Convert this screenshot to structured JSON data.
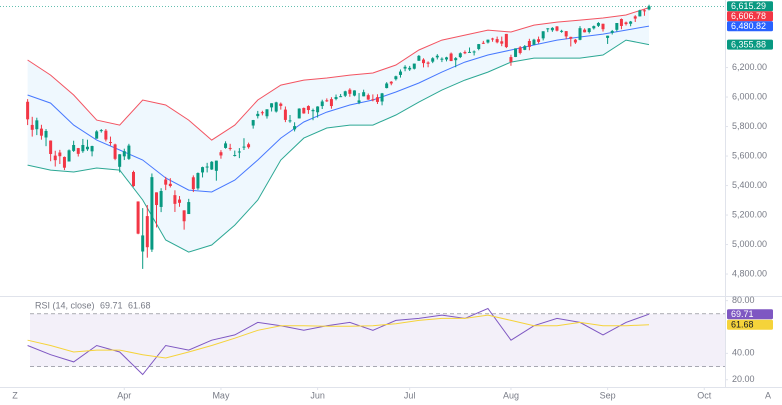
{
  "chart_data": [
    {
      "type": "candlestick",
      "xlim": [
        -6,
        151.5
      ],
      "xticks": [
        {
          "value": 21,
          "label": "Apr"
        },
        {
          "value": 42,
          "label": "May"
        },
        {
          "value": 63,
          "label": "Jun"
        },
        {
          "value": 83,
          "label": "Jul"
        },
        {
          "value": 105,
          "label": "Aug"
        },
        {
          "value": 126,
          "label": "Sep"
        },
        {
          "value": 147,
          "label": "Oct"
        }
      ],
      "ylim": [
        4658,
        6658
      ],
      "yticks": [
        {
          "value": 4800,
          "label": "4,800.00"
        },
        {
          "value": 5000,
          "label": "5,000.00"
        },
        {
          "value": 5200,
          "label": "5,200.00"
        },
        {
          "value": 5400,
          "label": "5,400.00"
        },
        {
          "value": 5600,
          "label": "5,600.00"
        },
        {
          "value": 5800,
          "label": "5,800.00"
        },
        {
          "value": 6000,
          "label": "6,000.00"
        },
        {
          "value": 6200,
          "label": "6,200.00"
        }
      ],
      "up_color": "#089981",
      "down_color": "#f23645",
      "last_label": "6,615.29",
      "open": [
        5968,
        5811,
        5782,
        5786,
        5726,
        5705,
        5603,
        5624,
        5594,
        5563,
        5635,
        5654,
        5633,
        5646,
        5632,
        5718,
        5772,
        5772,
        5695,
        5679,
        5527,
        5598,
        5581,
        5492,
        5292,
        4953,
        5193,
        4966,
        5354,
        5255,
        5441,
        5412,
        5335,
        5305,
        5232,
        5207,
        5456,
        5381,
        5489,
        5529,
        5509,
        5500,
        5626,
        5655,
        5655,
        5605,
        5626,
        5663,
        5680,
        5807,
        5871,
        5897,
        5870,
        5930,
        5902,
        5955,
        5915,
        5841,
        5781,
        5855,
        5926,
        5939,
        5904,
        5897,
        5939,
        5978,
        5986,
        5987,
        6005,
        6009,
        6050,
        6010,
        5963,
        6005,
        6013,
        5985,
        5999,
        5970,
        6061,
        6104,
        6121,
        6150,
        6193,
        6187,
        6192,
        6246,
        6254,
        6234,
        6240,
        6269,
        6255,
        6255,
        6295,
        6250,
        6271,
        6305,
        6304,
        6306,
        6326,
        6368,
        6370,
        6397,
        6393,
        6378,
        6428,
        6271,
        6272,
        6337,
        6320,
        6380,
        6354,
        6392,
        6398,
        6460,
        6453,
        6479,
        6446,
        6447,
        6408,
        6389,
        6388,
        6457,
        6441,
        6466,
        6483,
        6497,
        6401,
        6436,
        6456,
        6529,
        6506,
        6497,
        6547,
        6547,
        6588,
        6594
      ],
      "high": [
        5986,
        5866,
        5860,
        5812,
        5783,
        5706,
        5636,
        5642,
        5597,
        5645,
        5704,
        5655,
        5716,
        5711,
        5670,
        5775,
        5783,
        5783,
        5732,
        5684,
        5613,
        5650,
        5683,
        5501,
        5293,
        5247,
        5268,
        5482,
        5354,
        5382,
        5459,
        5450,
        5368,
        5329,
        5232,
        5310,
        5469,
        5489,
        5528,
        5554,
        5566,
        5569,
        5640,
        5700,
        5683,
        5637,
        5654,
        5721,
        5691,
        5845,
        5906,
        5907,
        5917,
        5958,
        5968,
        5963,
        5936,
        5878,
        5829,
        5924,
        5929,
        5944,
        5922,
        5938,
        5982,
        5991,
        5999,
        6017,
        6021,
        6043,
        6060,
        6046,
        6027,
        6050,
        6024,
        6018,
        6019,
        6028,
        6101,
        6108,
        6145,
        6187,
        6216,
        6211,
        6227,
        6285,
        6263,
        6242,
        6270,
        6291,
        6269,
        6273,
        6302,
        6271,
        6303,
        6316,
        6336,
        6316,
        6360,
        6381,
        6390,
        6402,
        6410,
        6410,
        6428,
        6287,
        6330,
        6346,
        6353,
        6395,
        6395,
        6410,
        6446,
        6467,
        6474,
        6481,
        6456,
        6447,
        6409,
        6394,
        6481,
        6466,
        6468,
        6485,
        6508,
        6497,
        6416,
        6455,
        6502,
        6533,
        6512,
        6516,
        6555,
        6592,
        6594,
        6626
      ],
      "low": [
        5810,
        5732,
        5742,
        5711,
        5667,
        5565,
        5529,
        5546,
        5505,
        5563,
        5628,
        5597,
        5622,
        5635,
        5598,
        5718,
        5759,
        5699,
        5671,
        5572,
        5489,
        5573,
        5574,
        5391,
        5070,
        4835,
        4911,
        4950,
        5116,
        5220,
        5369,
        5387,
        5221,
        5256,
        5101,
        5207,
        5356,
        5371,
        5455,
        5489,
        5506,
        5433,
        5582,
        5650,
        5637,
        5597,
        5586,
        5641,
        5650,
        5786,
        5855,
        5876,
        5854,
        5902,
        5895,
        5915,
        5830,
        5826,
        5767,
        5855,
        5887,
        5886,
        5843,
        5861,
        5919,
        5967,
        5921,
        5978,
        6000,
        6000,
        6002,
        6005,
        5952,
        6005,
        5981,
        5971,
        5953,
        5944,
        6059,
        6080,
        6112,
        6132,
        6175,
        6177,
        6187,
        6246,
        6201,
        6202,
        6230,
        6255,
        6237,
        6242,
        6244,
        6202,
        6264,
        6291,
        6303,
        6282,
        6317,
        6360,
        6363,
        6375,
        6364,
        6345,
        6332,
        6212,
        6271,
        6289,
        6318,
        6317,
        6354,
        6363,
        6384,
        6440,
        6442,
        6445,
        6436,
        6393,
        6343,
        6360,
        6385,
        6438,
        6431,
        6458,
        6475,
        6444,
        6360,
        6424,
        6445,
        6460,
        6485,
        6480,
        6509,
        6546,
        6551,
        6588
      ],
      "close": [
        5849,
        5778,
        5842,
        5738,
        5770,
        5614,
        5572,
        5599,
        5521,
        5639,
        5675,
        5615,
        5675,
        5663,
        5668,
        5767,
        5776,
        5712,
        5693,
        5581,
        5612,
        5633,
        5671,
        5397,
        5074,
        5062,
        4982,
        5457,
        5268,
        5363,
        5406,
        5397,
        5276,
        5283,
        5158,
        5288,
        5376,
        5485,
        5525,
        5529,
        5561,
        5569,
        5604,
        5686,
        5650,
        5607,
        5631,
        5664,
        5660,
        5844,
        5886,
        5892,
        5917,
        5958,
        5964,
        5940,
        5845,
        5842,
        5803,
        5922,
        5889,
        5912,
        5912,
        5936,
        5970,
        5971,
        5939,
        6000,
        6006,
        6039,
        6022,
        6045,
        5977,
        6033,
        5983,
        5981,
        5967,
        6025,
        6092,
        6092,
        6141,
        6173,
        6205,
        6198,
        6227,
        6279,
        6230,
        6226,
        6263,
        6280,
        6260,
        6269,
        6244,
        6264,
        6297,
        6297,
        6306,
        6309,
        6359,
        6363,
        6389,
        6390,
        6371,
        6362,
        6339,
        6238,
        6330,
        6299,
        6345,
        6340,
        6389,
        6374,
        6446,
        6466,
        6469,
        6450,
        6449,
        6411,
        6396,
        6370,
        6467,
        6439,
        6466,
        6481,
        6502,
        6460,
        6416,
        6448,
        6502,
        6482,
        6495,
        6512,
        6532,
        6588,
        6584,
        6615.29
      ],
      "overlay_x": [
        0,
        5,
        10,
        15,
        20,
        25,
        30,
        35,
        40,
        45,
        50,
        55,
        60,
        65,
        70,
        75,
        80,
        85,
        90,
        95,
        100,
        105,
        110,
        115,
        120,
        125,
        130,
        135
      ],
      "overlays": [
        {
          "color": "#f23645",
          "last_label": "6,606.78",
          "values": [
            6251,
            6149,
            6014,
            5844,
            5810,
            5980,
            5946,
            5844,
            5708,
            5810,
            5980,
            6081,
            6115,
            6129,
            6149,
            6163,
            6217,
            6319,
            6386,
            6420,
            6454,
            6441,
            6488,
            6508,
            6522,
            6536,
            6556,
            6606.78
          ]
        },
        {
          "color": "#2962ff",
          "last_label": "6,480.82",
          "values": [
            6014,
            5959,
            5810,
            5708,
            5641,
            5573,
            5451,
            5369,
            5356,
            5437,
            5573,
            5722,
            5831,
            5898,
            5946,
            5980,
            6034,
            6095,
            6169,
            6237,
            6285,
            6319,
            6353,
            6386,
            6407,
            6427,
            6454,
            6480.82
          ]
        },
        {
          "color": "#089981",
          "last_label": "6,355.88",
          "values": [
            5539,
            5505,
            5492,
            5519,
            5505,
            5302,
            5031,
            4949,
            4997,
            5132,
            5302,
            5573,
            5722,
            5790,
            5810,
            5810,
            5878,
            5966,
            6047,
            6115,
            6169,
            6237,
            6264,
            6264,
            6264,
            6285,
            6386,
            6355.88
          ]
        }
      ]
    },
    {
      "type": "line",
      "title": "RSI (14, close)",
      "xlim": [
        -6,
        151.5
      ],
      "ylim": [
        16,
        82
      ],
      "yticks": [
        {
          "value": 20,
          "label": "20.00"
        },
        {
          "value": 40,
          "label": "40.00"
        },
        {
          "value": 80,
          "label": "80.00"
        }
      ],
      "band": [
        30,
        70
      ],
      "x": [
        0,
        5,
        10,
        15,
        20,
        25,
        30,
        35,
        40,
        45,
        50,
        55,
        60,
        65,
        70,
        75,
        80,
        85,
        90,
        95,
        100,
        105,
        110,
        115,
        120,
        125,
        130,
        135
      ],
      "series": [
        {
          "color": "#7e57c2",
          "last_label": "69.71",
          "values": [
            46,
            39,
            33.5,
            46,
            41,
            24,
            46,
            42.5,
            50,
            54,
            63.5,
            61,
            57.5,
            61,
            63.5,
            57.5,
            65,
            66.5,
            69,
            66.5,
            74,
            50,
            61,
            66.5,
            63.5,
            54,
            63.5,
            69.71
          ]
        },
        {
          "color": "#f5d33a",
          "last_label": "61.68",
          "values": [
            50,
            46,
            41,
            42.5,
            42.5,
            39,
            36.5,
            41,
            46,
            51.5,
            57.5,
            61,
            61,
            60.5,
            60.5,
            61,
            62.5,
            65,
            66.5,
            66.5,
            69,
            65,
            61,
            61,
            63.5,
            61,
            61,
            61.68
          ]
        }
      ]
    }
  ],
  "ui": {
    "left_button": "Z",
    "right_button": "A"
  }
}
